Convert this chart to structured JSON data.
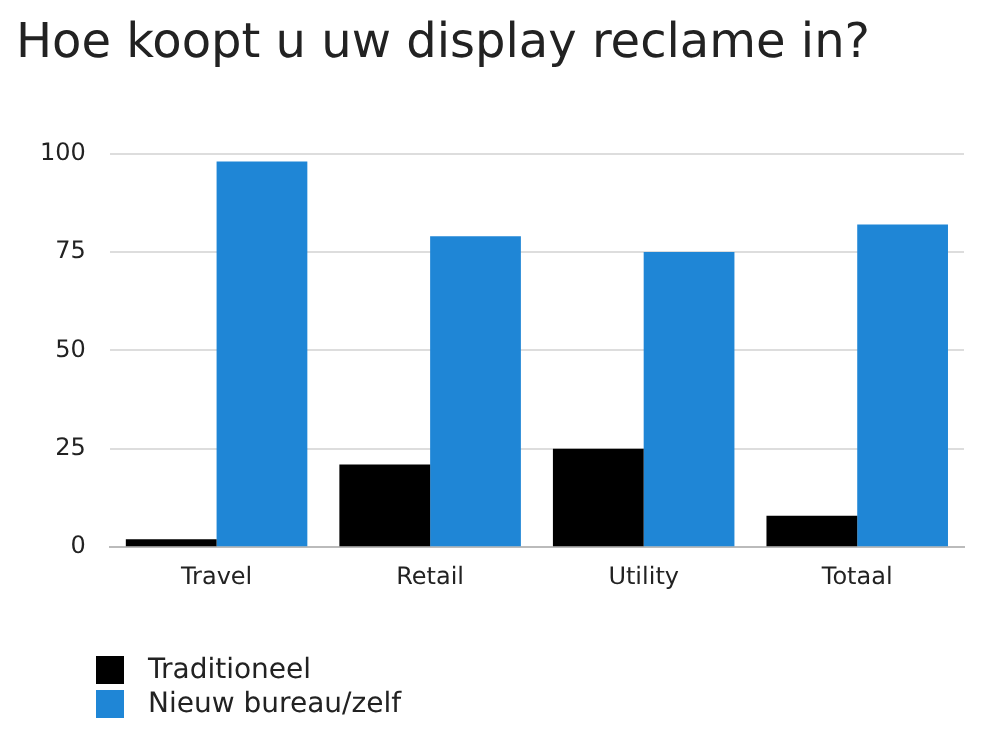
{
  "chart_data": {
    "type": "bar",
    "title": "Hoe koopt u uw display reclame in?",
    "categories": [
      "Travel",
      "Retail",
      "Utility",
      "Totaal"
    ],
    "series": [
      {
        "name": "Traditioneel",
        "color": "#000000",
        "values": [
          2,
          21,
          25,
          8
        ]
      },
      {
        "name": "Nieuw bureau/zelf",
        "color": "#1f86d6",
        "values": [
          98,
          79,
          75,
          82
        ]
      }
    ],
    "ylim": [
      0,
      100
    ],
    "yticks": [
      0,
      25,
      50,
      75,
      100
    ],
    "grid": "y",
    "legend": "bottom left"
  }
}
